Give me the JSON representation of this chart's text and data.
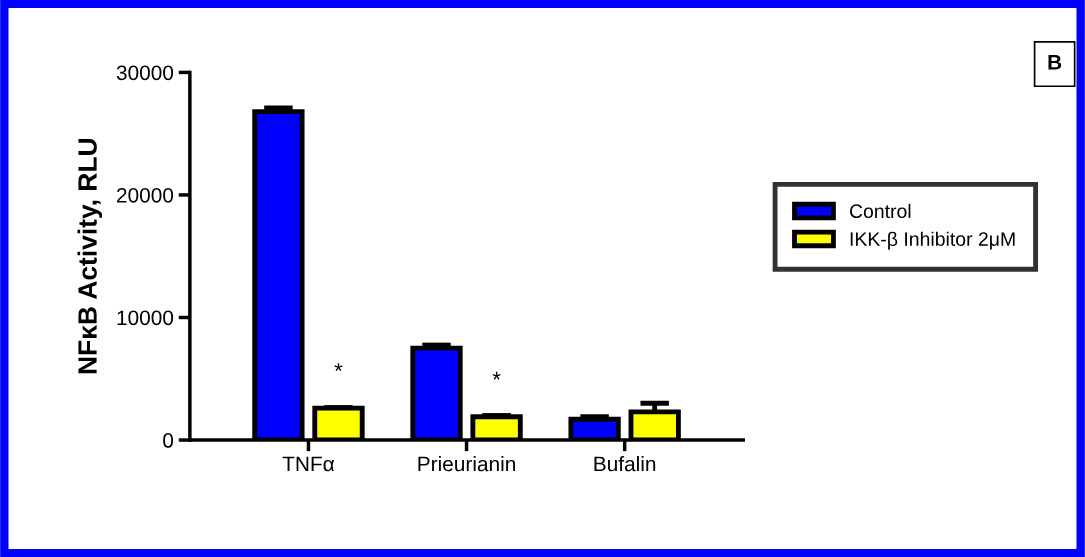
{
  "chart_data": {
    "type": "bar",
    "ylabel": "NFκB Activity, RLU",
    "categories": [
      "TNFα",
      "Prieurianin",
      "Bufalin"
    ],
    "series": [
      {
        "name": "Control",
        "color": "#0000ff",
        "values": [
          26800,
          7500,
          1700
        ],
        "errors": [
          300,
          250,
          200
        ]
      },
      {
        "name": "IKK-β Inhibitor 2μM",
        "color": "#ffff00",
        "values": [
          2600,
          1900,
          2300
        ],
        "errors": [
          50,
          100,
          700
        ]
      }
    ],
    "ylim": [
      0,
      30000
    ],
    "yticks": [
      0,
      10000,
      20000,
      30000
    ],
    "grid": false,
    "legend": "right",
    "annotations": [
      "*",
      "*",
      "B"
    ]
  }
}
